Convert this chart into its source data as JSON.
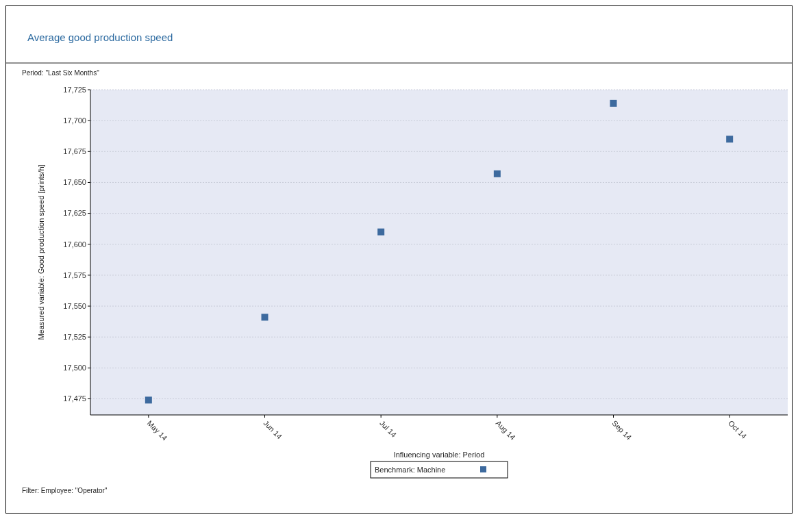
{
  "chart_data": {
    "type": "scatter",
    "title": "Average good production speed",
    "subtitle": "Period: \"Last Six Months\"",
    "xlabel": "Influencing variable: Period",
    "ylabel": "Measured variable: Good production speed [prints/h]",
    "legend_title": "Benchmark: Machine",
    "annotations": [
      "Filter: Employee: \"Operator\""
    ],
    "categories": [
      "May 14",
      "Jun 14",
      "Jul 14",
      "Aug 14",
      "Sep 14",
      "Oct 14"
    ],
    "series": [
      {
        "color": "#3d6a9e",
        "values": [
          17474,
          17541,
          17610,
          17657,
          17714,
          17685
        ]
      }
    ],
    "ylim": [
      17462,
      17725
    ],
    "yticks": [
      {
        "value": 17475,
        "label": "17,475"
      },
      {
        "value": 17500,
        "label": "17,500"
      },
      {
        "value": 17525,
        "label": "17,525"
      },
      {
        "value": 17550,
        "label": "17,550"
      },
      {
        "value": 17575,
        "label": "17,575"
      },
      {
        "value": 17600,
        "label": "17,600"
      },
      {
        "value": 17625,
        "label": "17,625"
      },
      {
        "value": 17650,
        "label": "17,650"
      },
      {
        "value": 17675,
        "label": "17,675"
      },
      {
        "value": 17700,
        "label": "17,700"
      },
      {
        "value": 17725,
        "label": "17,725"
      }
    ],
    "grid": "y",
    "marker": "square"
  }
}
